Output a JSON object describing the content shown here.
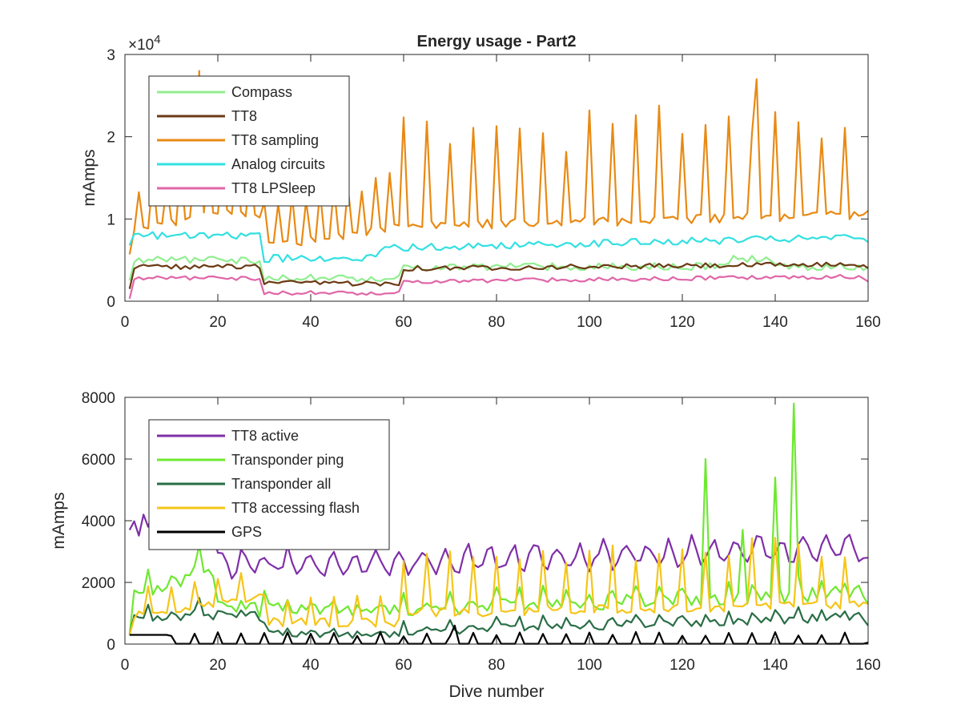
{
  "figure": {
    "title": "Energy usage - Part2"
  },
  "chart_data": [
    {
      "type": "line",
      "title": "Energy usage - Part2",
      "xlabel": "",
      "ylabel": "mAmps",
      "xlim": [
        0,
        160
      ],
      "ylim": [
        0,
        30000
      ],
      "x_ticks": [
        0,
        20,
        40,
        60,
        80,
        100,
        120,
        140,
        160
      ],
      "y_ticks": [
        0,
        10000,
        20000,
        30000
      ],
      "y_tick_labels": [
        "0",
        "1",
        "2",
        "3"
      ],
      "y_exponent_label": "×10",
      "y_exponent_power": "4",
      "grid": false,
      "legend_position": "top-left",
      "x": [
        1,
        160
      ],
      "series": [
        {
          "name": "Compass",
          "color": "#90ee90",
          "profile": "compass",
          "start": 2500,
          "end": 4200
        },
        {
          "name": "TT8",
          "color": "#6b3a14",
          "profile": "tt8",
          "start": 1500,
          "end": 4000
        },
        {
          "name": "TT8 sampling",
          "color": "#e88a14",
          "profile": "sampling",
          "start": 5700,
          "end": 11000
        },
        {
          "name": "Analog circuits",
          "color": "#33e0e0",
          "profile": "analog",
          "start": 6800,
          "end": 7200
        },
        {
          "name": "TT8 LPSleep",
          "color": "#e066a8",
          "profile": "lpsleep",
          "start": 300,
          "end": 2400
        }
      ]
    },
    {
      "type": "line",
      "title": "",
      "xlabel": "Dive number",
      "ylabel": "mAmps",
      "xlim": [
        0,
        160
      ],
      "ylim": [
        0,
        8000
      ],
      "x_ticks": [
        0,
        20,
        40,
        60,
        80,
        100,
        120,
        140,
        160
      ],
      "y_ticks": [
        0,
        2000,
        4000,
        6000,
        8000
      ],
      "y_tick_labels": [
        "0",
        "2000",
        "4000",
        "6000",
        "8000"
      ],
      "grid": false,
      "legend_position": "top-left",
      "x": [
        1,
        160
      ],
      "series": [
        {
          "name": "TT8 active",
          "color": "#7f2fa8",
          "profile": "active",
          "start": 3700,
          "end": 2800
        },
        {
          "name": "Transponder ping",
          "color": "#6ee830",
          "profile": "ping",
          "start": 300,
          "end": 1300
        },
        {
          "name": "Transponder all",
          "color": "#2a6e46",
          "profile": "tall",
          "start": 300,
          "end": 600
        },
        {
          "name": "TT8 accessing flash",
          "color": "#f5c518",
          "profile": "flash",
          "start": 300,
          "end": 1300
        },
        {
          "name": "GPS",
          "color": "#000000",
          "profile": "gps",
          "start": 300,
          "end": 50
        }
      ]
    }
  ]
}
